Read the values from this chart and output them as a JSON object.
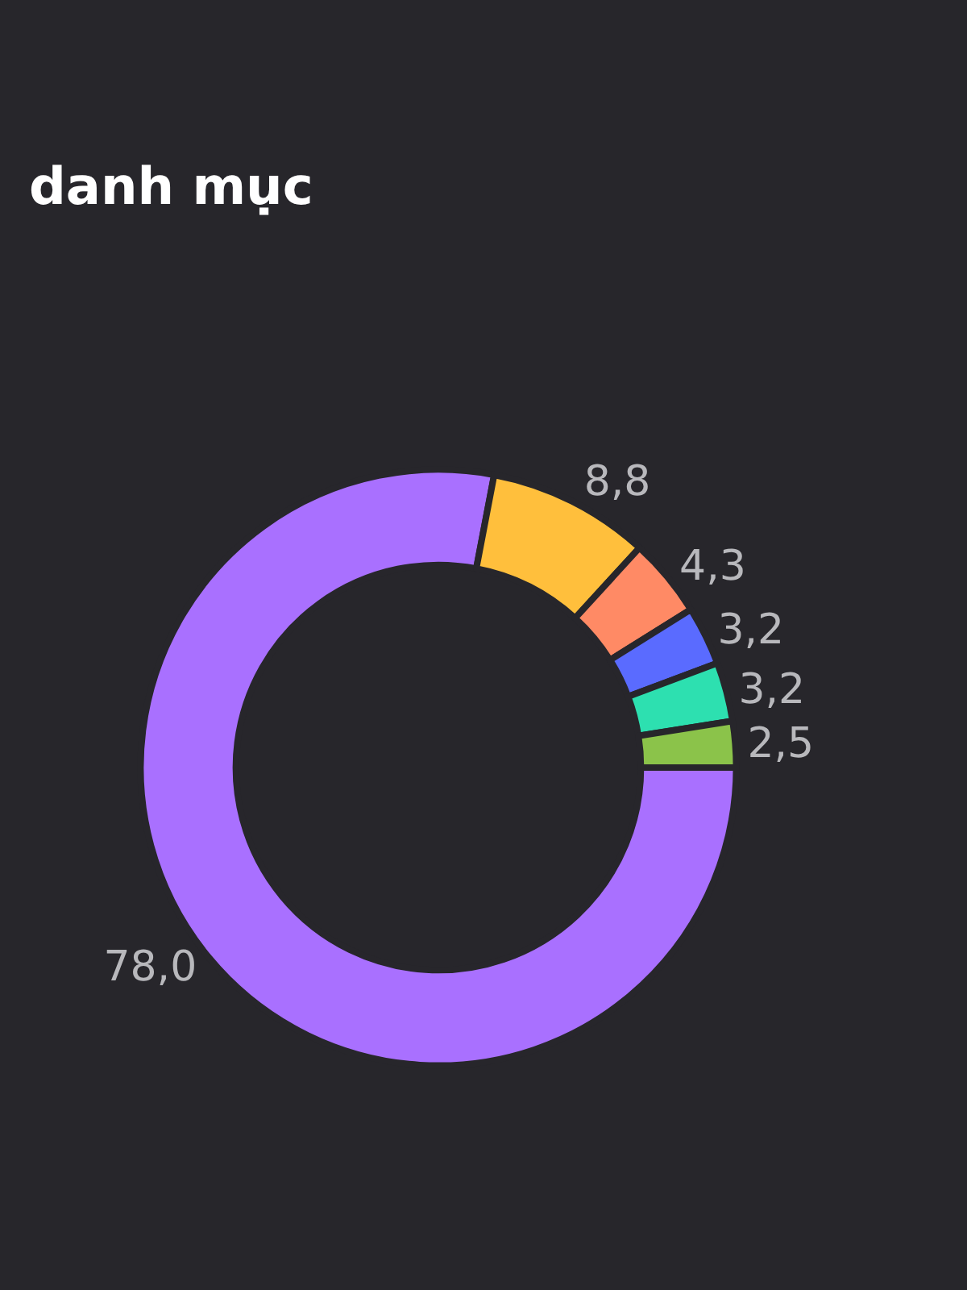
{
  "chart_data": {
    "type": "donut",
    "title": "danh mục",
    "categories": [
      null,
      null,
      null,
      null,
      null,
      null
    ],
    "values": [
      78.0,
      8.8,
      4.3,
      3.2,
      3.2,
      2.5
    ],
    "colors": [
      "#a970ff",
      "#ffbf3c",
      "#ff8a65",
      "#5a6bff",
      "#2de0b0",
      "#8bc34a"
    ],
    "value_labels": [
      "78,0",
      "8,8",
      "4,3",
      "3,2",
      "3,2",
      "2,5"
    ],
    "legend": false
  }
}
